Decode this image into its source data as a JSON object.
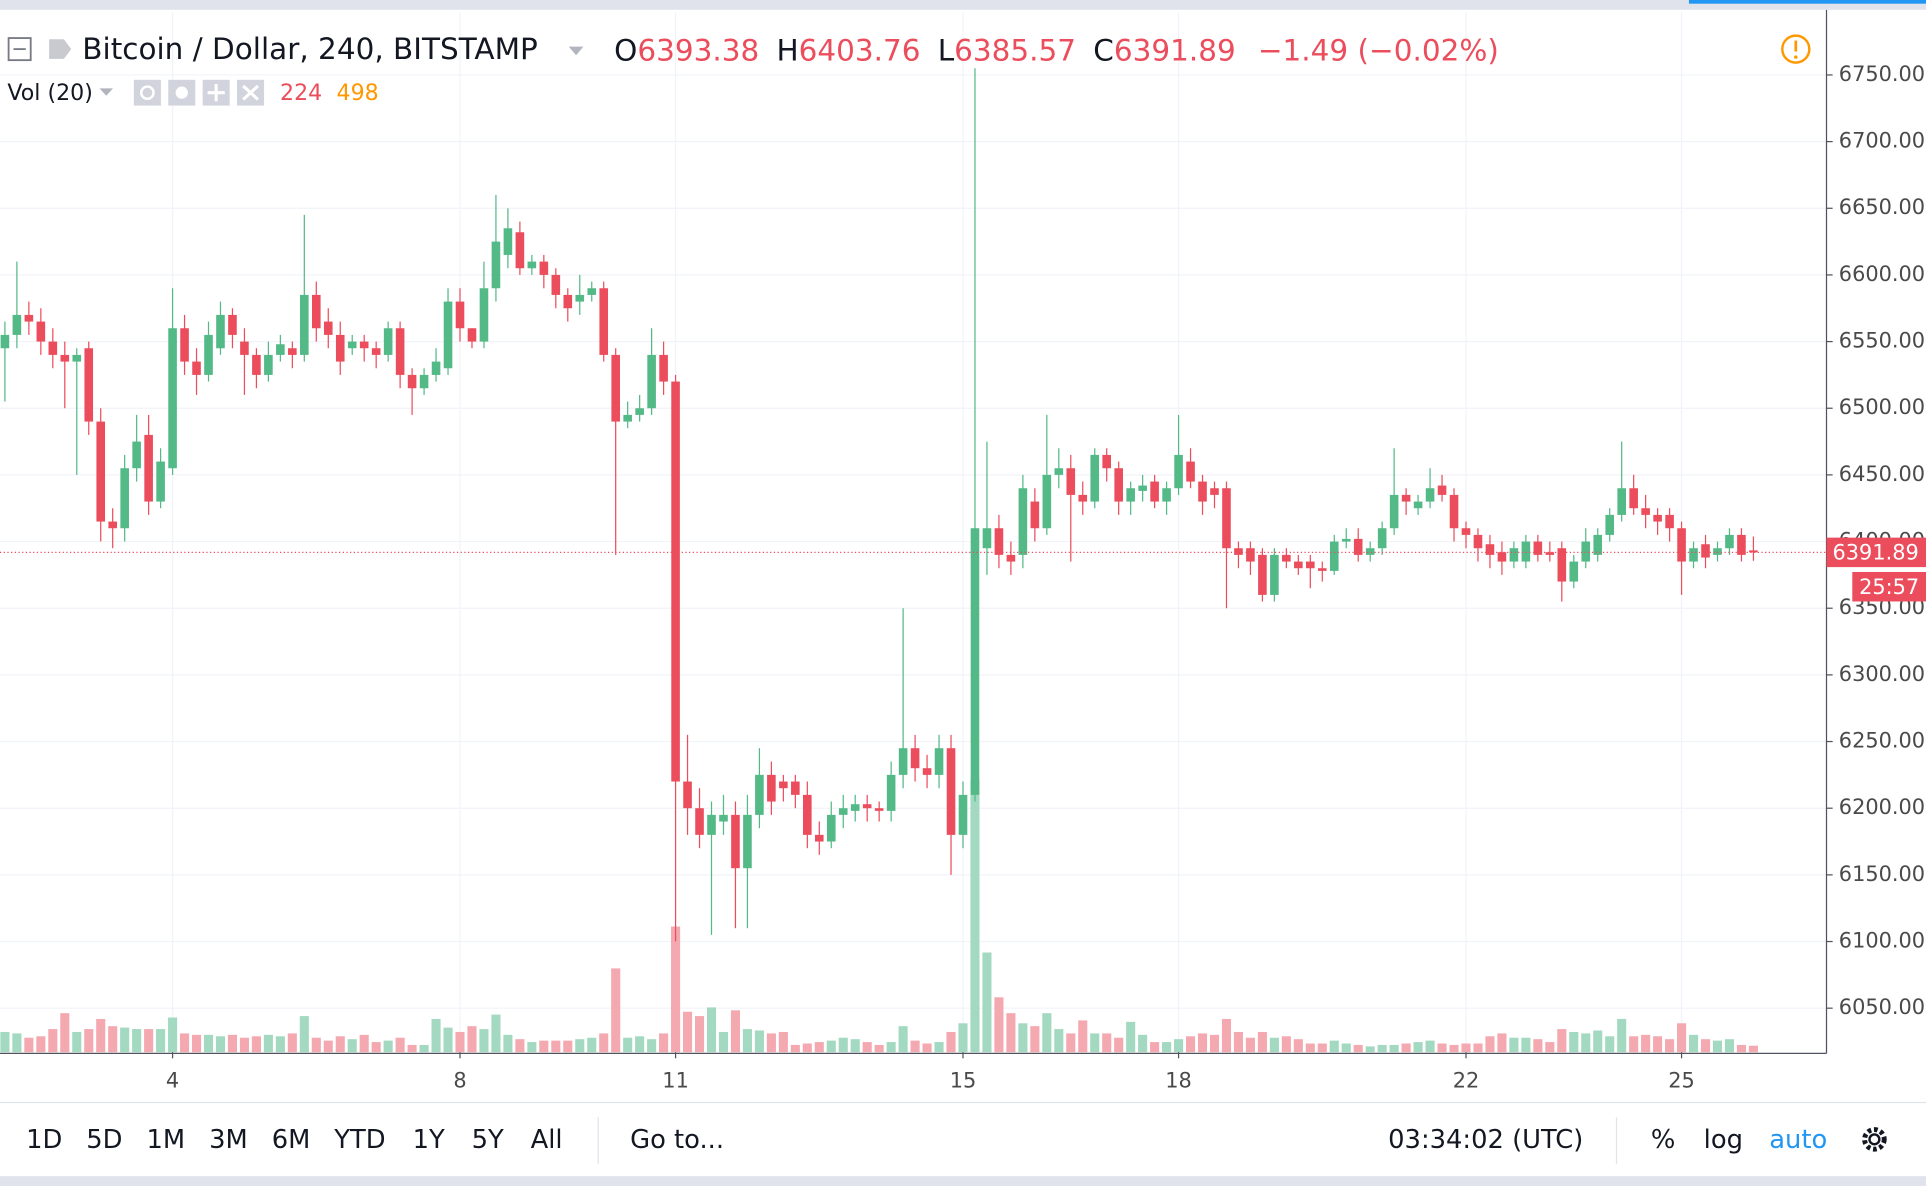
{
  "header": {
    "symbol": "Bitcoin / Dollar, 240, BITSTAMP",
    "o": "O",
    "h": "H",
    "l": "L",
    "c": "C",
    "change": "−1.49 (−0.02%)",
    "vol": "Vol (20)",
    "vol_ma": "498"
  },
  "toolbar": {
    "ranges": [
      "1D",
      "5D",
      "1M",
      "3M",
      "6M",
      "YTD",
      "1Y",
      "5Y",
      "All"
    ],
    "goto": "Go to...",
    "time": "03:34:02 (UTC)",
    "percent": "%",
    "log": "log",
    "auto": "auto"
  },
  "chart_data": {
    "type": "candlestick",
    "up_color": "#53b987",
    "down_color": "#eb4d5c",
    "up_volume_color": "#a3d9c0",
    "down_volume_color": "#f4a9b0",
    "countdown": "25:57",
    "ylim": [
      6017,
      6797
    ],
    "yticks": [
      {
        "value": 6050,
        "label": "6050.00"
      },
      {
        "value": 6100,
        "label": "6100.00"
      },
      {
        "value": 6150,
        "label": "6150.00"
      },
      {
        "value": 6200,
        "label": "6200.00"
      },
      {
        "value": 6250,
        "label": "6250.00"
      },
      {
        "value": 6300,
        "label": "6300.00"
      },
      {
        "value": 6350,
        "label": "6350.00"
      },
      {
        "value": 6400,
        "label": "6400.00"
      },
      {
        "value": 6450,
        "label": "6450.00"
      },
      {
        "value": 6500,
        "label": "6500.00"
      },
      {
        "value": 6550,
        "label": "6550.00"
      },
      {
        "value": 6600,
        "label": "6600.00"
      },
      {
        "value": 6650,
        "label": "6650.00"
      },
      {
        "value": 6700,
        "label": "6700.00"
      },
      {
        "value": 6750,
        "label": "6750.00"
      }
    ],
    "volume_ylim": [
      0,
      36000
    ],
    "categories": [
      null,
      null,
      null,
      null,
      null,
      null,
      null,
      null,
      null,
      null,
      null,
      null,
      null,
      null,
      "4",
      null,
      null,
      null,
      null,
      null,
      null,
      null,
      null,
      null,
      null,
      null,
      null,
      null,
      null,
      null,
      null,
      null,
      null,
      null,
      null,
      null,
      null,
      null,
      "8",
      null,
      null,
      null,
      null,
      null,
      null,
      null,
      null,
      null,
      null,
      null,
      null,
      null,
      null,
      null,
      null,
      null,
      "11",
      null,
      null,
      null,
      null,
      null,
      null,
      null,
      null,
      null,
      null,
      null,
      null,
      null,
      null,
      null,
      null,
      null,
      null,
      null,
      null,
      null,
      null,
      null,
      "15",
      null,
      null,
      null,
      null,
      null,
      null,
      null,
      null,
      null,
      null,
      null,
      null,
      null,
      null,
      null,
      null,
      null,
      "18",
      null,
      null,
      null,
      null,
      null,
      null,
      null,
      null,
      null,
      null,
      null,
      null,
      null,
      null,
      null,
      null,
      null,
      null,
      null,
      null,
      null,
      null,
      null,
      "22",
      null,
      null,
      null,
      null,
      null,
      null,
      null,
      null,
      null,
      null,
      null,
      null,
      null,
      null,
      null,
      null,
      null,
      "25",
      null,
      null,
      null,
      null,
      null,
      null
    ],
    "open": [
      6545,
      6555,
      6570,
      6565,
      6550,
      6540,
      6535,
      6545,
      6490,
      6415,
      6410,
      6455,
      6480,
      6430,
      6455,
      6560,
      6535,
      6525,
      6545,
      6570,
      6550,
      6540,
      6525,
      6540,
      6545,
      6540,
      6585,
      6565,
      6555,
      6545,
      6550,
      6545,
      6540,
      6560,
      6525,
      6515,
      6525,
      6530,
      6580,
      6560,
      6550,
      6590,
      6615,
      6632,
      6605,
      6610,
      6600,
      6585,
      6580,
      6585,
      6590,
      6540,
      6490,
      6495,
      6500,
      6540,
      6520,
      6220,
      6200,
      6180,
      6190,
      6195,
      6155,
      6195,
      6225,
      6220,
      6220,
      6210,
      6180,
      6175,
      6195,
      6198,
      6203,
      6200,
      6198,
      6225,
      6245,
      6230,
      6225,
      6245,
      6180,
      6210,
      6395,
      6410,
      6390,
      6390,
      6430,
      6410,
      6450,
      6455,
      6435,
      6430,
      6465,
      6455,
      6430,
      6438,
      6445,
      6430,
      6440,
      6460,
      6445,
      6440,
      6440,
      6395,
      6395,
      6390,
      6360,
      6390,
      6385,
      6385,
      6380,
      6378,
      6400,
      6402,
      6390,
      6395,
      6410,
      6435,
      6425,
      6430,
      6442,
      6435,
      6410,
      6405,
      6398,
      6392,
      6385,
      6385,
      6400,
      6392,
      6395,
      6370,
      6385,
      6390,
      6405,
      6420,
      6440,
      6425,
      6420,
      6420,
      6410,
      6385,
      6398,
      6390,
      6395,
      6405,
      6393.38
    ],
    "high": [
      6565,
      6610,
      6580,
      6575,
      6560,
      6550,
      6545,
      6550,
      6500,
      6425,
      6465,
      6495,
      6495,
      6470,
      6590,
      6570,
      6545,
      6565,
      6580,
      6575,
      6560,
      6545,
      6550,
      6555,
      6550,
      6645,
      6595,
      6575,
      6565,
      6555,
      6555,
      6550,
      6565,
      6565,
      6530,
      6530,
      6545,
      6590,
      6590,
      6560,
      6610,
      6660,
      6650,
      6640,
      6615,
      6615,
      6605,
      6590,
      6600,
      6595,
      6595,
      6545,
      6505,
      6510,
      6560,
      6550,
      6525,
      6255,
      6215,
      6205,
      6210,
      6205,
      6210,
      6245,
      6235,
      6225,
      6225,
      6220,
      6190,
      6205,
      6210,
      6210,
      6210,
      6205,
      6235,
      6350,
      6255,
      6240,
      6255,
      6255,
      6220,
      6755,
      6475,
      6420,
      6400,
      6450,
      6440,
      6495,
      6470,
      6465,
      6445,
      6470,
      6470,
      6460,
      6445,
      6450,
      6450,
      6445,
      6495,
      6470,
      6450,
      6445,
      6445,
      6400,
      6400,
      6395,
      6395,
      6395,
      6390,
      6390,
      6385,
      6405,
      6410,
      6410,
      6400,
      6415,
      6470,
      6440,
      6435,
      6455,
      6450,
      6440,
      6415,
      6410,
      6405,
      6400,
      6400,
      6405,
      6405,
      6400,
      6400,
      6390,
      6410,
      6410,
      6425,
      6475,
      6450,
      6435,
      6425,
      6425,
      6415,
      6400,
      6405,
      6400,
      6410,
      6410,
      6403.76
    ],
    "low": [
      6505,
      6545,
      6555,
      6540,
      6530,
      6500,
      6450,
      6480,
      6400,
      6395,
      6400,
      6445,
      6420,
      6425,
      6450,
      6525,
      6510,
      6520,
      6540,
      6545,
      6510,
      6515,
      6520,
      6535,
      6530,
      6535,
      6550,
      6545,
      6525,
      6540,
      6535,
      6530,
      6535,
      6515,
      6495,
      6510,
      6520,
      6525,
      6550,
      6545,
      6545,
      6580,
      6605,
      6600,
      6600,
      6590,
      6575,
      6565,
      6570,
      6580,
      6535,
      6390,
      6485,
      6490,
      6495,
      6510,
      6100,
      6180,
      6170,
      6105,
      6180,
      6110,
      6110,
      6185,
      6195,
      6205,
      6200,
      6170,
      6165,
      6170,
      6185,
      6190,
      6190,
      6190,
      6190,
      6215,
      6220,
      6215,
      6215,
      6150,
      6170,
      6205,
      6375,
      6380,
      6375,
      6380,
      6400,
      6405,
      6440,
      6385,
      6420,
      6425,
      6445,
      6420,
      6420,
      6430,
      6425,
      6420,
      6435,
      6440,
      6420,
      6425,
      6350,
      6380,
      6375,
      6355,
      6355,
      6380,
      6375,
      6365,
      6370,
      6375,
      6395,
      6385,
      6385,
      6390,
      6405,
      6420,
      6420,
      6425,
      6430,
      6400,
      6395,
      6385,
      6380,
      6375,
      6380,
      6380,
      6385,
      6385,
      6355,
      6365,
      6380,
      6385,
      6400,
      6415,
      6420,
      6410,
      6405,
      6400,
      6360,
      6380,
      6380,
      6385,
      6390,
      6385,
      6385.57
    ],
    "close": [
      6555,
      6570,
      6565,
      6550,
      6540,
      6535,
      6540,
      6490,
      6415,
      6410,
      6455,
      6475,
      6430,
      6460,
      6560,
      6535,
      6525,
      6555,
      6570,
      6555,
      6540,
      6525,
      6540,
      6548,
      6540,
      6585,
      6560,
      6555,
      6535,
      6550,
      6545,
      6540,
      6560,
      6525,
      6515,
      6525,
      6535,
      6580,
      6560,
      6550,
      6590,
      6625,
      6635,
      6605,
      6610,
      6600,
      6585,
      6575,
      6585,
      6590,
      6540,
      6490,
      6495,
      6500,
      6540,
      6520,
      6220,
      6200,
      6180,
      6195,
      6195,
      6155,
      6195,
      6225,
      6205,
      6215,
      6210,
      6180,
      6175,
      6195,
      6200,
      6203,
      6200,
      6198,
      6225,
      6245,
      6230,
      6225,
      6245,
      6180,
      6210,
      6410,
      6410,
      6390,
      6385,
      6440,
      6410,
      6450,
      6455,
      6435,
      6430,
      6465,
      6455,
      6430,
      6440,
      6442,
      6430,
      6440,
      6465,
      6445,
      6430,
      6435,
      6395,
      6390,
      6385,
      6360,
      6390,
      6385,
      6380,
      6380,
      6378,
      6400,
      6402,
      6390,
      6395,
      6410,
      6435,
      6430,
      6430,
      6440,
      6435,
      6410,
      6405,
      6395,
      6390,
      6385,
      6395,
      6400,
      6390,
      6390,
      6370,
      6385,
      6400,
      6405,
      6420,
      6440,
      6425,
      6420,
      6415,
      6410,
      6385,
      6395,
      6388,
      6395,
      6405,
      6390,
      6391.89
    ],
    "volume": [
      700,
      650,
      500,
      550,
      800,
      1350,
      700,
      800,
      1150,
      900,
      850,
      800,
      800,
      800,
      1200,
      650,
      600,
      600,
      550,
      600,
      500,
      550,
      600,
      550,
      650,
      1250,
      500,
      400,
      550,
      450,
      600,
      350,
      400,
      500,
      250,
      250,
      1150,
      850,
      700,
      900,
      800,
      1300,
      600,
      450,
      350,
      400,
      400,
      400,
      450,
      500,
      650,
      2900,
      500,
      550,
      450,
      650,
      4350,
      1400,
      1250,
      1550,
      700,
      1450,
      800,
      750,
      650,
      700,
      250,
      300,
      350,
      400,
      500,
      450,
      350,
      250,
      350,
      900,
      400,
      300,
      350,
      700,
      1000,
      9450,
      3450,
      1900,
      1350,
      1000,
      900,
      1350,
      800,
      650,
      1100,
      650,
      650,
      500,
      1050,
      600,
      350,
      350,
      450,
      550,
      650,
      600,
      1150,
      700,
      500,
      700,
      500,
      550,
      450,
      300,
      300,
      400,
      300,
      250,
      200,
      250,
      250,
      300,
      350,
      400,
      300,
      250,
      300,
      300,
      550,
      650,
      500,
      500,
      450,
      350,
      800,
      700,
      650,
      750,
      550,
      1150,
      550,
      600,
      550,
      450,
      1000,
      600,
      450,
      400,
      450,
      250,
      224
    ]
  }
}
